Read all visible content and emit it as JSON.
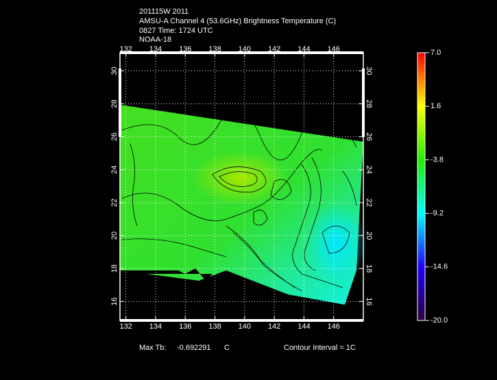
{
  "header": {
    "lines": [
      "201115W 2011",
      "AMSU-A Channel 4 (53.6GHz) Brightness Temperature (C)",
      "0827 Time: 1724 UTC",
      "NOAA-18"
    ]
  },
  "chart_data": {
    "type": "map",
    "xlim": [
      131.6,
      148.0
    ],
    "ylim": [
      14.85,
      31.1
    ],
    "xticks": [
      132,
      134,
      136,
      138,
      140,
      142,
      144,
      146
    ],
    "yticks": [
      16,
      18,
      20,
      22,
      24,
      26,
      28,
      30
    ],
    "grid": true,
    "colorbar": {
      "lim": [
        -20,
        7
      ],
      "ticks": [
        {
          "value": 7,
          "label": "7.0"
        },
        1.6,
        -3.8,
        -9.2,
        -14.6,
        {
          "value": -20,
          "label": "-20.0"
        }
      ],
      "colors": [
        "#2a0040",
        "#2000ff",
        "#00ffff",
        "#22ee00",
        "#ffff00",
        "#ff0000"
      ]
    }
  },
  "footer": {
    "max_label": "Max Tb:",
    "max_value": "-0.692291",
    "max_unit": "C",
    "contour_interval": "Contour Interval = 1C"
  }
}
